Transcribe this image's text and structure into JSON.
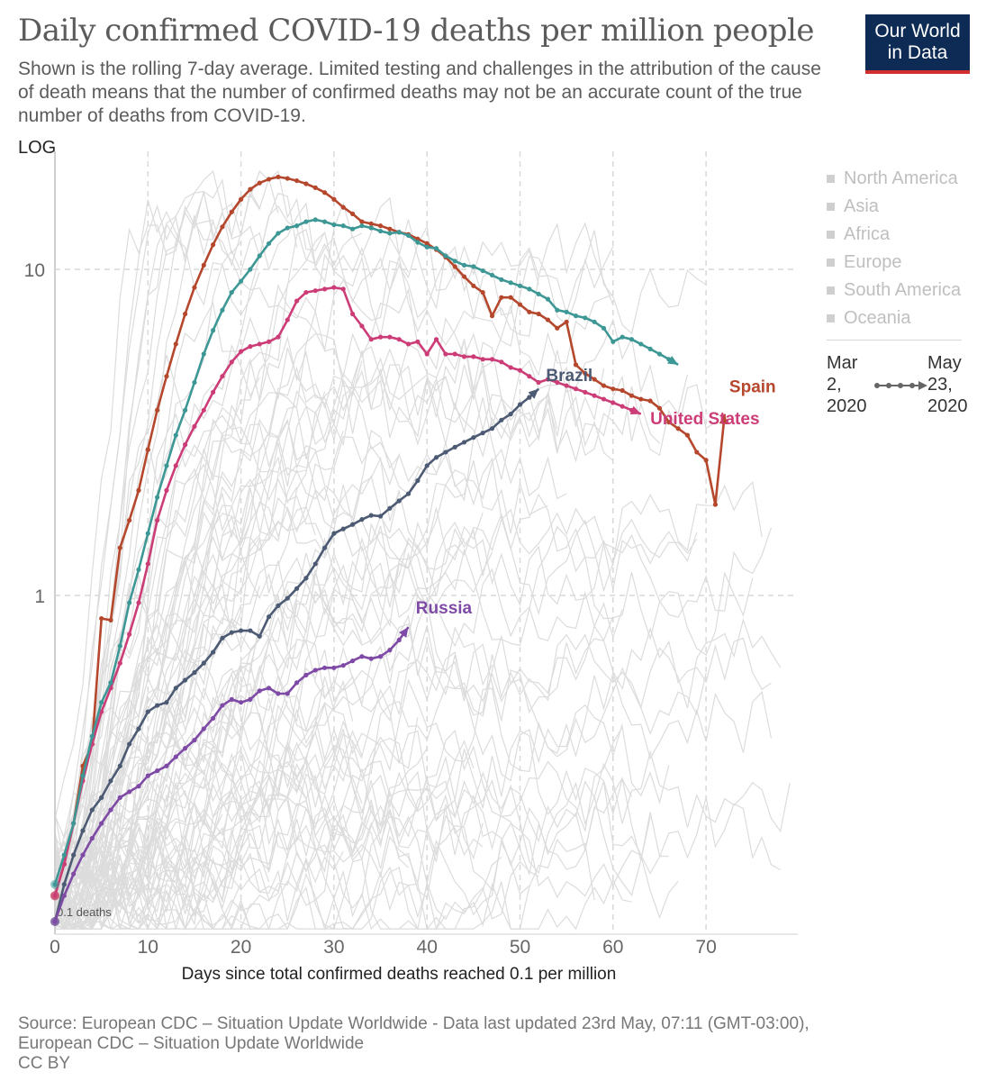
{
  "title": "Daily confirmed COVID-19 deaths per million people",
  "subtitle": "Shown is the rolling 7-day average. Limited testing and challenges in the attribution of the cause of death means that the number of confirmed deaths may not be an accurate count of the true number of deaths from COVID-19.",
  "logo": {
    "line1": "Our World",
    "line2": "in Data"
  },
  "scale_label": "LOG",
  "legend": [
    "North America",
    "Asia",
    "Africa",
    "Europe",
    "South America",
    "Oceania"
  ],
  "timeline": {
    "start": "Mar 2, 2020",
    "end": "May 23, 2020"
  },
  "source": {
    "line1": "Source: European CDC – Situation Update Worldwide - Data last updated 23rd May, 07:11 (GMT-03:00),",
    "line2": "European CDC – Situation Update Worldwide",
    "line3": "CC BY"
  },
  "colors": {
    "spain": "#b5472c",
    "us": "#cc3c77",
    "brazil": "#4c5a73",
    "russia": "#7e4aa6",
    "teal": "#3d9795",
    "gray": "#dcdcdc",
    "grid": "#d9d9d9"
  },
  "chart_data": {
    "type": "line",
    "yscale": "log",
    "xlabel": "Days since total confirmed deaths reached 0.1 per million",
    "ylabel": "",
    "xlim": [
      0,
      80
    ],
    "ylim": [
      0.1,
      22
    ],
    "x_ticks": [
      0,
      10,
      20,
      30,
      40,
      50,
      60,
      70
    ],
    "y_ticks": [
      1,
      10
    ],
    "y_tick_labels": [
      "1",
      "10"
    ],
    "baseline_label": "0.1 deaths",
    "series": [
      {
        "name": "Spain",
        "label": "Spain",
        "color": "#b5472c",
        "x": [
          0,
          1,
          2,
          3,
          4,
          5,
          6,
          7,
          8,
          9,
          10,
          11,
          12,
          13,
          14,
          15,
          16,
          17,
          18,
          19,
          20,
          21,
          22,
          23,
          24,
          25,
          26,
          27,
          28,
          29,
          30,
          31,
          32,
          33,
          34,
          35,
          36,
          37,
          38,
          39,
          40,
          41,
          42,
          43,
          44,
          45,
          46,
          47,
          48,
          49,
          50,
          51,
          52,
          53,
          54,
          55,
          56,
          57,
          58,
          59,
          60,
          61,
          62,
          63,
          64,
          65,
          66,
          67,
          68,
          69,
          70,
          71,
          72
        ],
        "y": [
          0.12,
          0.15,
          0.2,
          0.3,
          0.35,
          0.85,
          0.84,
          1.4,
          1.7,
          2.1,
          2.8,
          3.7,
          4.7,
          5.9,
          7.3,
          8.8,
          10.3,
          11.9,
          13.5,
          15.0,
          16.4,
          17.6,
          18.4,
          18.9,
          19.2,
          19.0,
          18.7,
          18.3,
          17.8,
          17.2,
          16.4,
          15.5,
          14.8,
          14.0,
          13.8,
          13.6,
          13.3,
          13.0,
          12.8,
          12.4,
          12.0,
          11.5,
          10.9,
          10.2,
          9.5,
          8.9,
          8.5,
          7.2,
          8.2,
          8.2,
          7.8,
          7.4,
          7.3,
          7.0,
          6.6,
          6.9,
          5.1,
          4.8,
          4.6,
          4.4,
          4.3,
          4.25,
          4.1,
          4.0,
          3.95,
          3.75,
          3.4,
          3.25,
          3.1,
          2.75,
          2.6,
          1.9,
          3.6
        ],
        "label_x": 72.5,
        "label_y": 4.2
      },
      {
        "name": "United States",
        "label": "United States",
        "color": "#cc3c77",
        "x": [
          0,
          1,
          2,
          3,
          4,
          5,
          6,
          7,
          8,
          9,
          10,
          11,
          12,
          13,
          14,
          15,
          16,
          17,
          18,
          19,
          20,
          21,
          22,
          23,
          24,
          25,
          26,
          27,
          28,
          29,
          30,
          31,
          32,
          33,
          34,
          35,
          36,
          37,
          38,
          39,
          40,
          41,
          42,
          43,
          44,
          45,
          46,
          47,
          48,
          49,
          50,
          51,
          52,
          53,
          54,
          55,
          56,
          57,
          58,
          59,
          60,
          61,
          62,
          63
        ],
        "y": [
          0.12,
          0.15,
          0.2,
          0.27,
          0.35,
          0.44,
          0.52,
          0.62,
          0.76,
          0.95,
          1.25,
          1.7,
          2.1,
          2.5,
          2.9,
          3.3,
          3.7,
          4.2,
          4.7,
          5.2,
          5.6,
          5.8,
          5.9,
          6.0,
          6.2,
          7.0,
          8.0,
          8.5,
          8.6,
          8.7,
          8.8,
          8.7,
          7.3,
          6.7,
          6.1,
          6.2,
          6.2,
          6.1,
          5.9,
          6.0,
          5.5,
          6.1,
          5.5,
          5.5,
          5.4,
          5.4,
          5.3,
          5.3,
          5.2,
          5.0,
          4.9,
          4.7,
          4.5,
          4.6,
          4.5,
          4.4,
          4.3,
          4.2,
          4.1,
          4.0,
          3.9,
          3.8,
          3.7,
          3.6
        ],
        "label_x": 64,
        "label_y": 3.35
      },
      {
        "name": "Brazil",
        "label": "Brazil",
        "color": "#4c5a73",
        "x": [
          0,
          1,
          2,
          3,
          4,
          5,
          6,
          7,
          8,
          9,
          10,
          11,
          12,
          13,
          14,
          15,
          16,
          17,
          18,
          19,
          20,
          21,
          22,
          23,
          24,
          25,
          26,
          27,
          28,
          29,
          30,
          31,
          32,
          33,
          34,
          35,
          36,
          37,
          38,
          39,
          40,
          41,
          42,
          43,
          44,
          45,
          46,
          47,
          48,
          49,
          50,
          51,
          52
        ],
        "y": [
          0.1,
          0.13,
          0.16,
          0.19,
          0.22,
          0.24,
          0.27,
          0.3,
          0.35,
          0.39,
          0.44,
          0.46,
          0.47,
          0.52,
          0.55,
          0.58,
          0.62,
          0.67,
          0.74,
          0.77,
          0.78,
          0.78,
          0.75,
          0.86,
          0.93,
          0.98,
          1.05,
          1.13,
          1.25,
          1.4,
          1.55,
          1.6,
          1.65,
          1.71,
          1.76,
          1.75,
          1.85,
          1.95,
          2.05,
          2.25,
          2.5,
          2.65,
          2.75,
          2.85,
          2.95,
          3.05,
          3.15,
          3.25,
          3.45,
          3.6,
          3.85,
          4.05,
          4.3
        ],
        "label_x": 52.8,
        "label_y": 4.55
      },
      {
        "name": "Russia",
        "label": "Russia",
        "color": "#7e4aa6",
        "x": [
          0,
          1,
          2,
          3,
          4,
          5,
          6,
          7,
          8,
          9,
          10,
          11,
          12,
          13,
          14,
          15,
          16,
          17,
          18,
          19,
          20,
          21,
          22,
          23,
          24,
          25,
          26,
          27,
          28,
          29,
          30,
          31,
          32,
          33,
          34,
          35,
          36,
          37,
          38
        ],
        "y": [
          0.1,
          0.12,
          0.14,
          0.16,
          0.18,
          0.2,
          0.22,
          0.24,
          0.25,
          0.26,
          0.28,
          0.29,
          0.3,
          0.32,
          0.34,
          0.36,
          0.39,
          0.42,
          0.46,
          0.48,
          0.47,
          0.48,
          0.51,
          0.52,
          0.5,
          0.5,
          0.54,
          0.57,
          0.59,
          0.6,
          0.6,
          0.61,
          0.63,
          0.65,
          0.64,
          0.65,
          0.68,
          0.73,
          0.8
        ],
        "label_x": 38.8,
        "label_y": 0.88
      },
      {
        "name": "",
        "label": "",
        "color": "#3d9795",
        "x": [
          0,
          1,
          2,
          3,
          4,
          5,
          6,
          7,
          8,
          9,
          10,
          11,
          12,
          13,
          14,
          15,
          16,
          17,
          18,
          19,
          20,
          21,
          22,
          23,
          24,
          25,
          26,
          27,
          28,
          29,
          30,
          31,
          32,
          33,
          34,
          35,
          36,
          37,
          38,
          39,
          40,
          41,
          42,
          43,
          44,
          45,
          46,
          47,
          48,
          49,
          50,
          51,
          52,
          53,
          54,
          55,
          56,
          57,
          58,
          59,
          60,
          61,
          62,
          63,
          64,
          65,
          66,
          67
        ],
        "y": [
          0.13,
          0.16,
          0.2,
          0.28,
          0.37,
          0.47,
          0.54,
          0.7,
          0.95,
          1.2,
          1.55,
          2.0,
          2.5,
          3.1,
          3.7,
          4.5,
          5.5,
          6.5,
          7.5,
          8.5,
          9.2,
          10.0,
          11.0,
          12.0,
          12.9,
          13.4,
          13.6,
          14.0,
          14.2,
          14.0,
          13.7,
          13.6,
          13.3,
          13.6,
          13.4,
          13.1,
          12.9,
          13.0,
          12.7,
          12.1,
          11.7,
          11.6,
          11.0,
          10.6,
          10.3,
          10.2,
          9.9,
          9.6,
          9.3,
          9.1,
          8.9,
          8.7,
          8.4,
          8.1,
          7.5,
          7.4,
          7.2,
          7.1,
          6.9,
          6.6,
          6.0,
          6.2,
          6.1,
          5.9,
          5.7,
          5.5,
          5.3,
          5.1
        ],
        "label_x": 67,
        "label_y": 5.1
      }
    ]
  }
}
